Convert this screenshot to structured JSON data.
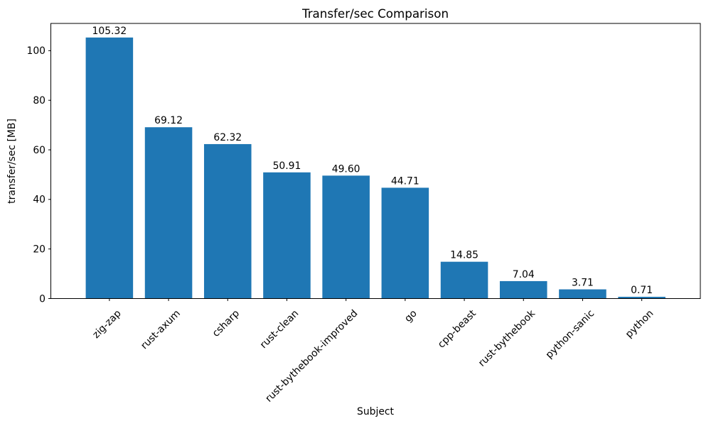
{
  "chart_data": {
    "type": "bar",
    "title": "Transfer/sec Comparison",
    "xlabel": "Subject",
    "ylabel": "transfer/sec [MB]",
    "categories": [
      "zig-zap",
      "rust-axum",
      "csharp",
      "rust-clean",
      "rust-bythebook-improved",
      "go",
      "cpp-beast",
      "rust-bythebook",
      "python-sanic",
      "python"
    ],
    "values": [
      105.32,
      69.12,
      62.32,
      50.91,
      49.6,
      44.71,
      14.85,
      7.04,
      3.71,
      0.71
    ],
    "value_labels": [
      "105.32",
      "69.12",
      "62.32",
      "50.91",
      "49.60",
      "44.71",
      "14.85",
      "7.04",
      "3.71",
      "0.71"
    ],
    "yticks": [
      0,
      20,
      40,
      60,
      80,
      100
    ],
    "ylim": [
      0,
      111
    ],
    "bar_color": "#1f77b4",
    "spine_color": "#000000",
    "grid": false,
    "legend": null,
    "x_tick_rotation_deg": 45,
    "bar_width_frac": 0.8
  }
}
